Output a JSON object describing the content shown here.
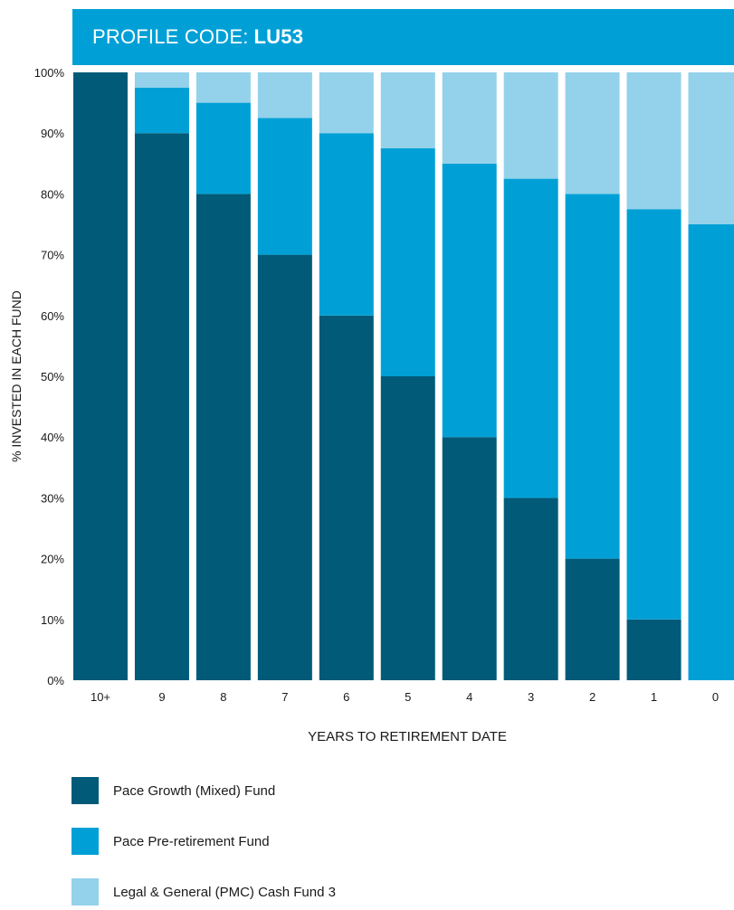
{
  "header": {
    "label": "PROFILE CODE:",
    "code": "LU53"
  },
  "chart_data": {
    "type": "bar",
    "stacked": true,
    "title": "",
    "xlabel": "YEARS TO RETIREMENT DATE",
    "ylabel": "% INVESTED IN EACH FUND",
    "ylim": [
      0,
      100
    ],
    "yticks": [
      "0%",
      "10%",
      "20%",
      "30%",
      "40%",
      "50%",
      "60%",
      "70%",
      "80%",
      "90%",
      "100%"
    ],
    "grid": false,
    "legend_position": "bottom",
    "categories": [
      "10+",
      "9",
      "8",
      "7",
      "6",
      "5",
      "4",
      "3",
      "2",
      "1",
      "0"
    ],
    "series": [
      {
        "name": "Pace Growth (Mixed) Fund",
        "color": "#005a78",
        "values": [
          100,
          90,
          80,
          70,
          60,
          50,
          40,
          30,
          20,
          10,
          0
        ]
      },
      {
        "name": "Pace Pre-retirement Fund",
        "color": "#00a0d6",
        "values": [
          0,
          7.5,
          15,
          22.5,
          30,
          37.5,
          45,
          52.5,
          60,
          67.5,
          75
        ]
      },
      {
        "name": "Legal & General (PMC) Cash Fund 3",
        "color": "#93d2ea",
        "values": [
          0,
          2.5,
          5,
          7.5,
          10,
          12.5,
          15,
          17.5,
          20,
          22.5,
          25
        ]
      }
    ]
  }
}
